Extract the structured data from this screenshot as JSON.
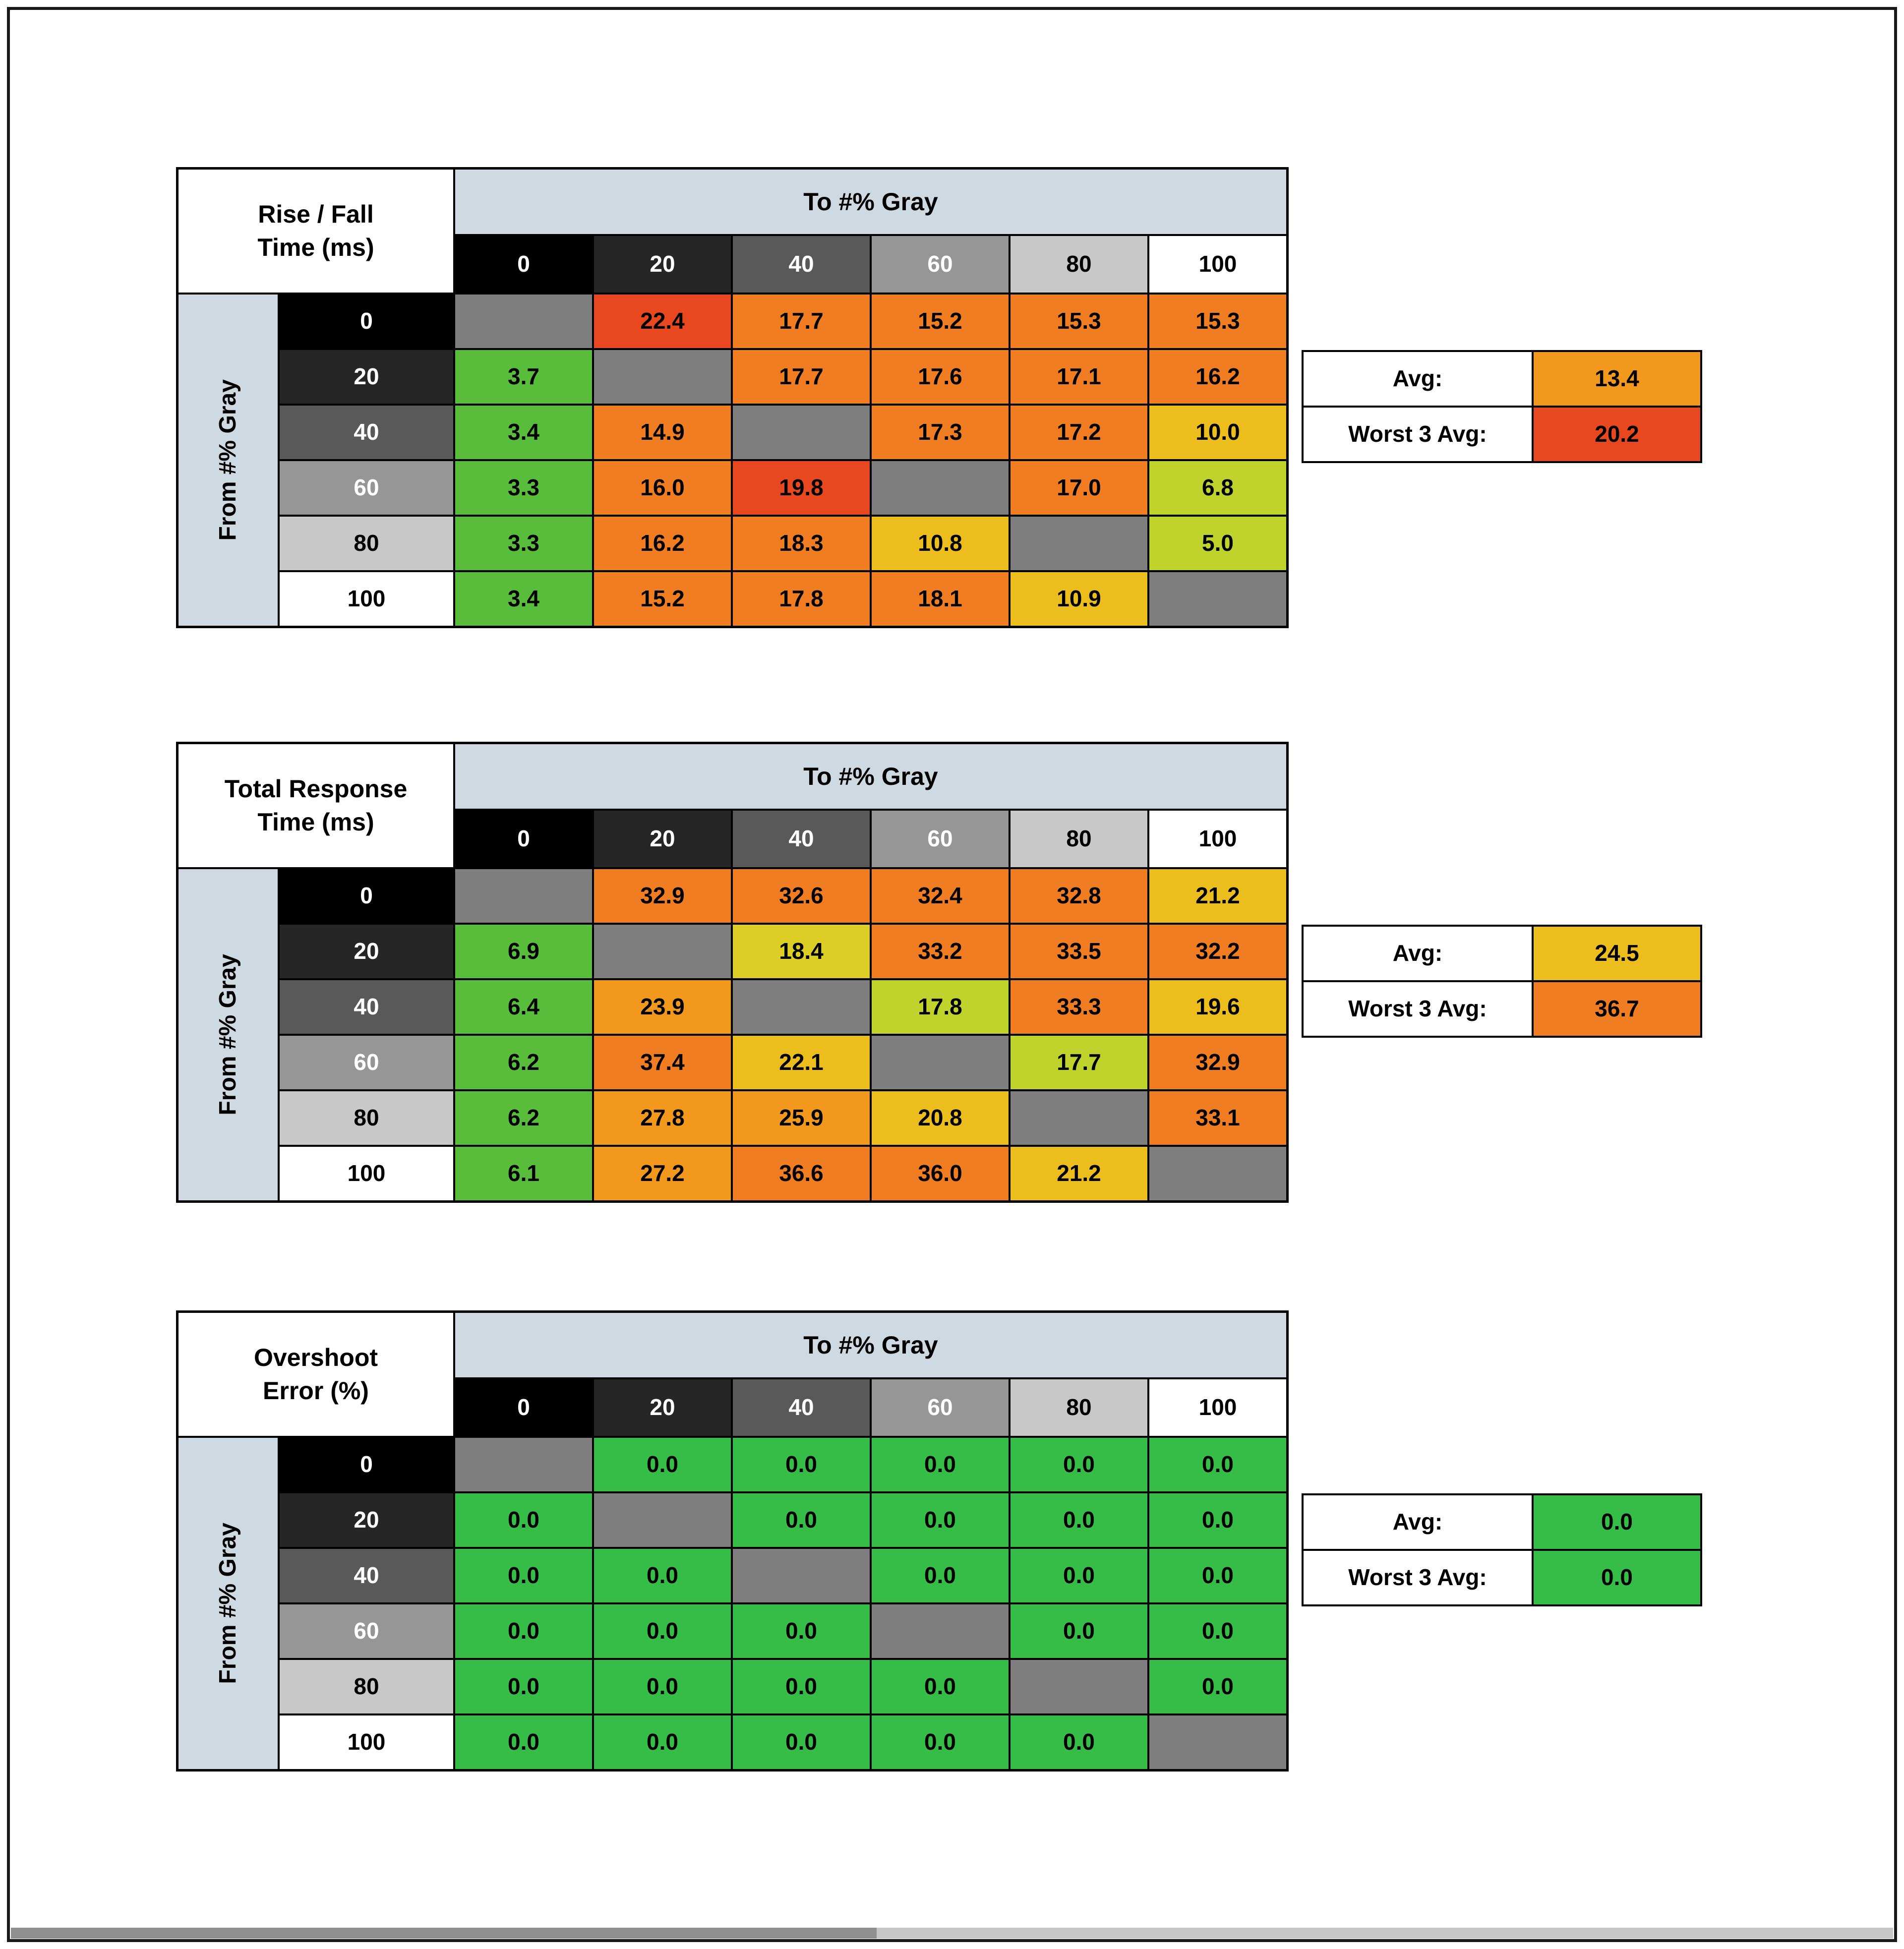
{
  "palette": {
    "diag": "#7f7f7f",
    "band": "#cfd9e2",
    "green": "#58bd3b",
    "green2": "#35bd47",
    "ygreen": "#c0d32c",
    "yellow": "#ddce25",
    "gold": "#ecbe1d",
    "amber": "#f2991d",
    "orange": "#f07d21",
    "redorange": "#e8481f"
  },
  "gray_levels": [
    {
      "label": "0",
      "bg": "#000000",
      "fg": "#ffffff"
    },
    {
      "label": "20",
      "bg": "#262626",
      "fg": "#ffffff"
    },
    {
      "label": "40",
      "bg": "#595959",
      "fg": "#ffffff"
    },
    {
      "label": "60",
      "bg": "#969696",
      "fg": "#ffffff"
    },
    {
      "label": "80",
      "bg": "#c8c8c8",
      "fg": "#000000"
    },
    {
      "label": "100",
      "bg": "#ffffff",
      "fg": "#000000"
    }
  ],
  "chart_data": [
    {
      "id": "rise-fall-time",
      "type": "heatmap",
      "title": "Rise / Fall Time (ms)",
      "title_lines": [
        "Rise / Fall",
        "Time (ms)"
      ],
      "col_axis": "To #% Gray",
      "row_axis": "From #% Gray",
      "columns": [
        "0",
        "20",
        "40",
        "60",
        "80",
        "100"
      ],
      "row_labels": [
        "0",
        "20",
        "40",
        "60",
        "80",
        "100"
      ],
      "values": [
        [
          null,
          22.4,
          17.7,
          15.2,
          15.3,
          15.3
        ],
        [
          3.7,
          null,
          17.7,
          17.6,
          17.1,
          16.2
        ],
        [
          3.4,
          14.9,
          null,
          17.3,
          17.2,
          10.0
        ],
        [
          3.3,
          16.0,
          19.8,
          null,
          17.0,
          6.8
        ],
        [
          3.3,
          16.2,
          18.3,
          10.8,
          null,
          5.0
        ],
        [
          3.4,
          15.2,
          17.8,
          18.1,
          10.9,
          null
        ]
      ],
      "colors": [
        [
          "diag",
          "redorange",
          "orange",
          "orange",
          "orange",
          "orange"
        ],
        [
          "green",
          "diag",
          "orange",
          "orange",
          "orange",
          "orange"
        ],
        [
          "green",
          "orange",
          "diag",
          "orange",
          "orange",
          "gold"
        ],
        [
          "green",
          "orange",
          "redorange",
          "diag",
          "orange",
          "ygreen"
        ],
        [
          "green",
          "orange",
          "orange",
          "gold",
          "diag",
          "ygreen"
        ],
        [
          "green",
          "orange",
          "orange",
          "orange",
          "gold",
          "diag"
        ]
      ],
      "avg_label": "Avg:",
      "avg_value": 13.4,
      "avg_color": "amber",
      "worst_label": "Worst 3 Avg:",
      "worst_value": 20.2,
      "worst_color": "redorange"
    },
    {
      "id": "total-response-time",
      "type": "heatmap",
      "title": "Total Response Time (ms)",
      "title_lines": [
        "Total Response",
        "Time (ms)"
      ],
      "col_axis": "To #% Gray",
      "row_axis": "From #% Gray",
      "columns": [
        "0",
        "20",
        "40",
        "60",
        "80",
        "100"
      ],
      "row_labels": [
        "0",
        "20",
        "40",
        "60",
        "80",
        "100"
      ],
      "values": [
        [
          null,
          32.9,
          32.6,
          32.4,
          32.8,
          21.2
        ],
        [
          6.9,
          null,
          18.4,
          33.2,
          33.5,
          32.2
        ],
        [
          6.4,
          23.9,
          null,
          17.8,
          33.3,
          19.6
        ],
        [
          6.2,
          37.4,
          22.1,
          null,
          17.7,
          32.9
        ],
        [
          6.2,
          27.8,
          25.9,
          20.8,
          null,
          33.1
        ],
        [
          6.1,
          27.2,
          36.6,
          36.0,
          21.2,
          null
        ]
      ],
      "colors": [
        [
          "diag",
          "orange",
          "orange",
          "orange",
          "orange",
          "gold"
        ],
        [
          "green",
          "diag",
          "yellow",
          "orange",
          "orange",
          "orange"
        ],
        [
          "green",
          "amber",
          "diag",
          "ygreen",
          "orange",
          "gold"
        ],
        [
          "green",
          "orange",
          "gold",
          "diag",
          "ygreen",
          "orange"
        ],
        [
          "green",
          "amber",
          "amber",
          "gold",
          "diag",
          "orange"
        ],
        [
          "green",
          "amber",
          "orange",
          "orange",
          "gold",
          "diag"
        ]
      ],
      "avg_label": "Avg:",
      "avg_value": 24.5,
      "avg_color": "gold",
      "worst_label": "Worst 3 Avg:",
      "worst_value": 36.7,
      "worst_color": "orange"
    },
    {
      "id": "overshoot-error",
      "type": "heatmap",
      "title": "Overshoot Error (%)",
      "title_lines": [
        "Overshoot",
        "Error (%)"
      ],
      "col_axis": "To #% Gray",
      "row_axis": "From #% Gray",
      "columns": [
        "0",
        "20",
        "40",
        "60",
        "80",
        "100"
      ],
      "row_labels": [
        "0",
        "20",
        "40",
        "60",
        "80",
        "100"
      ],
      "values": [
        [
          null,
          0.0,
          0.0,
          0.0,
          0.0,
          0.0
        ],
        [
          0.0,
          null,
          0.0,
          0.0,
          0.0,
          0.0
        ],
        [
          0.0,
          0.0,
          null,
          0.0,
          0.0,
          0.0
        ],
        [
          0.0,
          0.0,
          0.0,
          null,
          0.0,
          0.0
        ],
        [
          0.0,
          0.0,
          0.0,
          0.0,
          null,
          0.0
        ],
        [
          0.0,
          0.0,
          0.0,
          0.0,
          0.0,
          null
        ]
      ],
      "colors": [
        [
          "diag",
          "green2",
          "green2",
          "green2",
          "green2",
          "green2"
        ],
        [
          "green2",
          "diag",
          "green2",
          "green2",
          "green2",
          "green2"
        ],
        [
          "green2",
          "green2",
          "diag",
          "green2",
          "green2",
          "green2"
        ],
        [
          "green2",
          "green2",
          "green2",
          "diag",
          "green2",
          "green2"
        ],
        [
          "green2",
          "green2",
          "green2",
          "green2",
          "diag",
          "green2"
        ],
        [
          "green2",
          "green2",
          "green2",
          "green2",
          "green2",
          "diag"
        ]
      ],
      "avg_label": "Avg:",
      "avg_value": 0.0,
      "avg_color": "green2",
      "worst_label": "Worst 3 Avg:",
      "worst_value": 0.0,
      "worst_color": "green2"
    }
  ]
}
